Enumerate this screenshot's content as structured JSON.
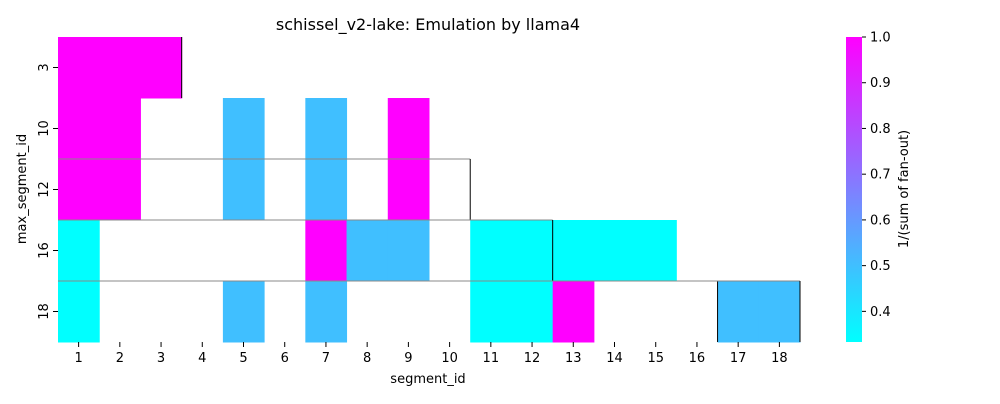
{
  "chart_data": {
    "type": "heatmap",
    "title": "schissel_v2-lake: Emulation by llama4",
    "xlabel": "segment_id",
    "ylabel": "max_segment_id",
    "x_categories": [
      "1",
      "2",
      "3",
      "4",
      "5",
      "6",
      "7",
      "8",
      "9",
      "10",
      "11",
      "12",
      "13",
      "14",
      "15",
      "16",
      "17",
      "18"
    ],
    "y_categories": [
      "3",
      "10",
      "12",
      "16",
      "18"
    ],
    "cells": [
      {
        "y": "3",
        "x": "1",
        "value": 1.0
      },
      {
        "y": "3",
        "x": "2",
        "value": 1.0
      },
      {
        "y": "3",
        "x": "3",
        "value": 1.0
      },
      {
        "y": "10",
        "x": "1",
        "value": 1.0
      },
      {
        "y": "10",
        "x": "2",
        "value": 1.0
      },
      {
        "y": "10",
        "x": "5",
        "value": 0.5
      },
      {
        "y": "10",
        "x": "7",
        "value": 0.5
      },
      {
        "y": "10",
        "x": "9",
        "value": 1.0
      },
      {
        "y": "12",
        "x": "1",
        "value": 1.0
      },
      {
        "y": "12",
        "x": "2",
        "value": 1.0
      },
      {
        "y": "12",
        "x": "5",
        "value": 0.5
      },
      {
        "y": "12",
        "x": "7",
        "value": 0.5
      },
      {
        "y": "12",
        "x": "9",
        "value": 1.0
      },
      {
        "y": "16",
        "x": "1",
        "value": 0.333
      },
      {
        "y": "16",
        "x": "7",
        "value": 1.0
      },
      {
        "y": "16",
        "x": "8",
        "value": 0.5
      },
      {
        "y": "16",
        "x": "9",
        "value": 0.5
      },
      {
        "y": "16",
        "x": "11",
        "value": 0.333
      },
      {
        "y": "16",
        "x": "12",
        "value": 0.333
      },
      {
        "y": "16",
        "x": "13",
        "value": 0.333
      },
      {
        "y": "16",
        "x": "14",
        "value": 0.333
      },
      {
        "y": "16",
        "x": "15",
        "value": 0.333
      },
      {
        "y": "18",
        "x": "1",
        "value": 0.333
      },
      {
        "y": "18",
        "x": "5",
        "value": 0.5
      },
      {
        "y": "18",
        "x": "7",
        "value": 0.5
      },
      {
        "y": "18",
        "x": "11",
        "value": 0.333
      },
      {
        "y": "18",
        "x": "12",
        "value": 0.333
      },
      {
        "y": "18",
        "x": "13",
        "value": 1.0
      },
      {
        "y": "18",
        "x": "17",
        "value": 0.5
      },
      {
        "y": "18",
        "x": "18",
        "value": 0.5
      }
    ],
    "segment_boundaries": [
      {
        "y": "3",
        "end_x": "3"
      },
      {
        "y": "12",
        "end_x": "10"
      },
      {
        "y": "16",
        "end_x": "12"
      },
      {
        "y": "18",
        "end_x": "16"
      },
      {
        "y": "18",
        "end_x": "18"
      }
    ],
    "colorbar": {
      "label": "1/(sum of fan-out)",
      "vmin": 0.333,
      "vmax": 1.0,
      "ticks": [
        "0.4",
        "0.5",
        "0.6",
        "0.7",
        "0.8",
        "0.9",
        "1.0"
      ],
      "colormap": "cool",
      "color_low": "#00ffff",
      "color_high": "#ff00ff"
    },
    "grid": false
  }
}
